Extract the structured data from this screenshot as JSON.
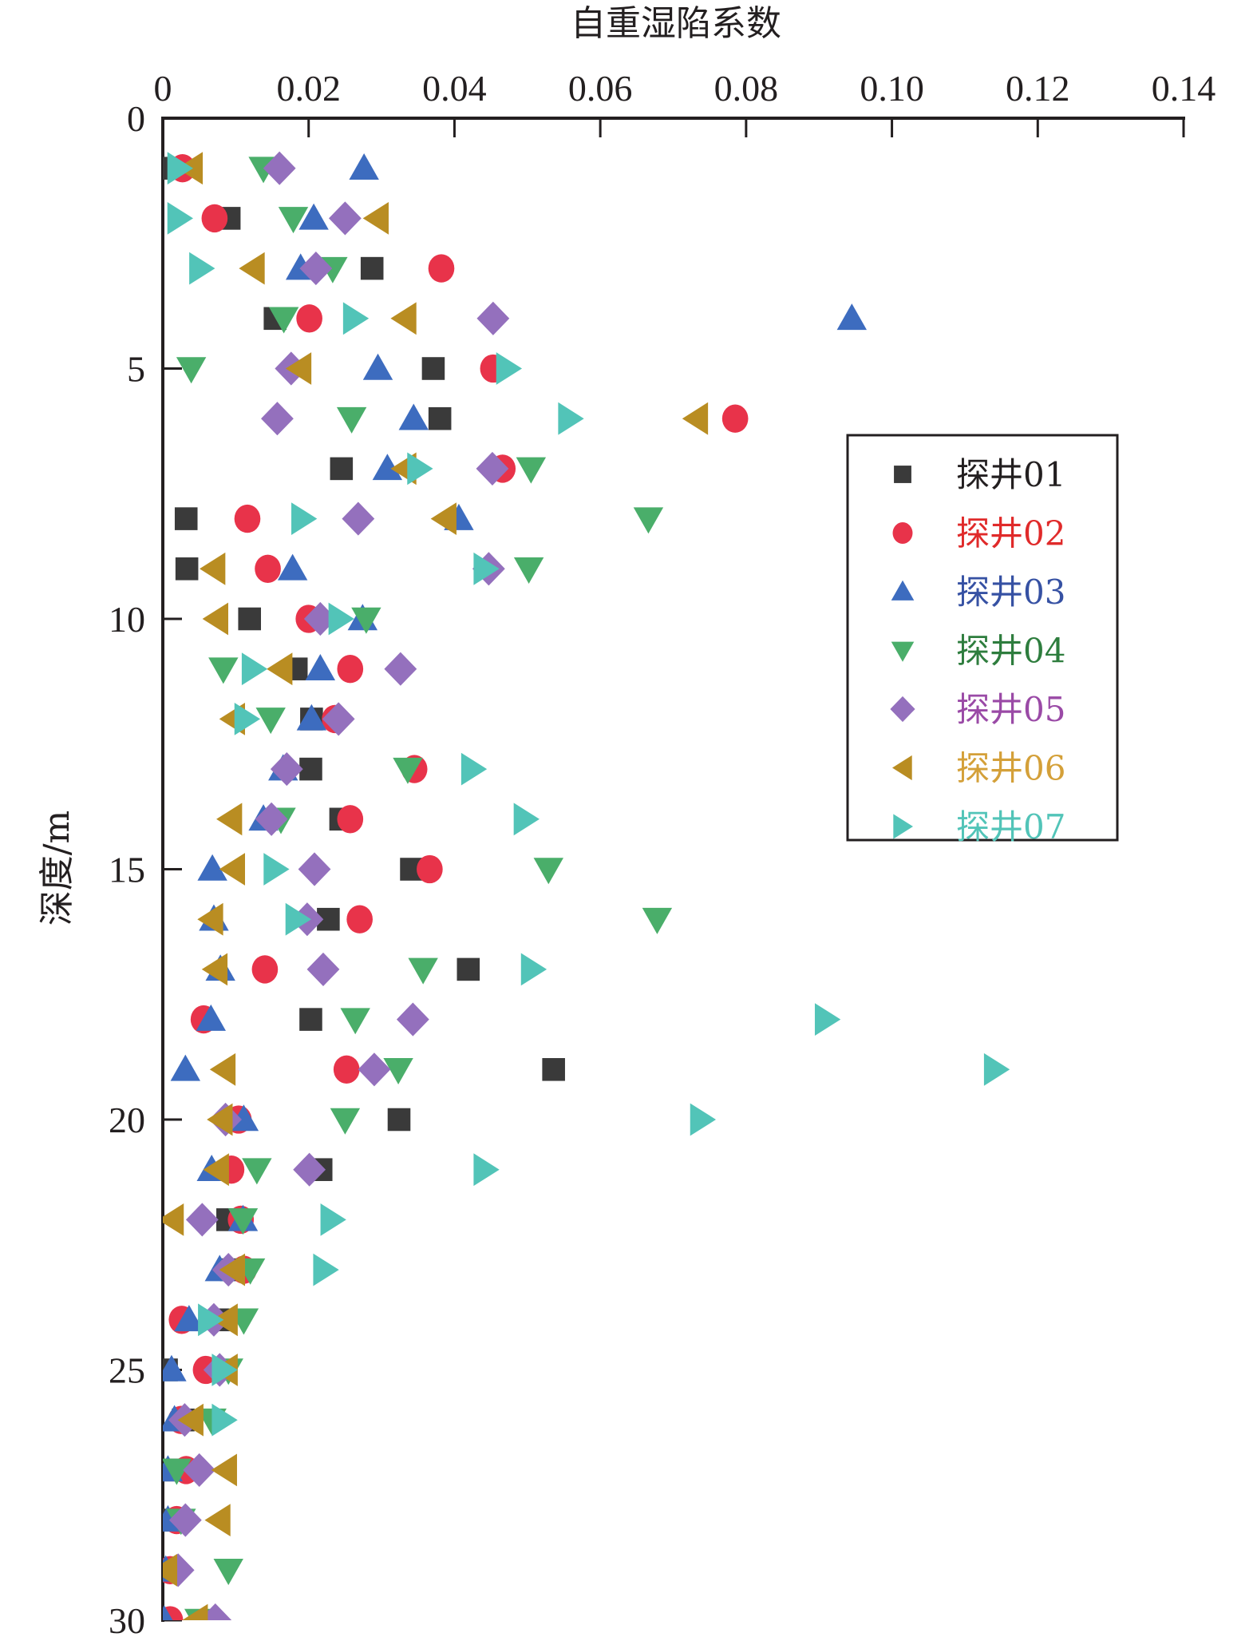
{
  "chart_data": {
    "type": "scatter",
    "title": "",
    "xlabel": "自重湿陷系数",
    "ylabel": "深度/m",
    "xlim": [
      0,
      0.14
    ],
    "ylim": [
      0,
      30
    ],
    "x_axis_position": "top",
    "y_axis_inverted": true,
    "x_ticks": [
      "0",
      "0.02",
      "0.04",
      "0.06",
      "0.08",
      "0.10",
      "0.12",
      "0.14"
    ],
    "x_tick_values": [
      0,
      0.02,
      0.04,
      0.06,
      0.08,
      0.1,
      0.12,
      0.14
    ],
    "y_ticks": [
      "0",
      "5",
      "10",
      "15",
      "20",
      "25",
      "30"
    ],
    "y_tick_values": [
      0,
      5,
      10,
      15,
      20,
      25,
      30
    ],
    "grid": false,
    "legend_position": "right",
    "depths": [
      1,
      2,
      3,
      4,
      5,
      6,
      7,
      8,
      9,
      10,
      11,
      12,
      13,
      14,
      15,
      16,
      17,
      18,
      19,
      20,
      21,
      22,
      23,
      24,
      25,
      26,
      27,
      28,
      29,
      30
    ],
    "series": [
      {
        "name": "探井01",
        "marker": "square",
        "color": "#3a3a3a",
        "label_color": "#231f20",
        "values": [
          0.0005,
          0.0091,
          0.0287,
          0.0154,
          0.0371,
          0.038,
          0.0245,
          0.0032,
          0.0033,
          0.0119,
          0.0183,
          0.0204,
          0.0203,
          0.0244,
          0.0341,
          0.0227,
          0.0419,
          0.0203,
          0.0536,
          0.0324,
          0.0217,
          0.0089,
          0.0094,
          0.0083,
          0.0005,
          0.0028,
          0.0018,
          0.0012,
          0.0012,
          0.0004
        ]
      },
      {
        "name": "探井02",
        "marker": "circle",
        "color": "#e8334a",
        "label_color": "#e02a2a",
        "values": [
          0.0027,
          0.0071,
          0.0382,
          0.0201,
          0.0453,
          0.0785,
          0.0466,
          0.0116,
          0.0144,
          0.02,
          0.0257,
          0.0236,
          0.0345,
          0.0257,
          0.0366,
          0.027,
          0.014,
          0.0056,
          0.0252,
          0.0104,
          0.0094,
          0.0107,
          0.0111,
          0.0026,
          0.0059,
          0.0025,
          0.0032,
          0.0019,
          0.001,
          0.001
        ]
      },
      {
        "name": "探井03",
        "marker": "triangle-up",
        "color": "#3d6cbf",
        "label_color": "#3651a3",
        "values": [
          0.0276,
          0.0207,
          0.0189,
          0.0945,
          0.0295,
          0.0344,
          0.0308,
          0.0406,
          0.0178,
          0.0274,
          0.0216,
          0.0204,
          0.0165,
          0.0138,
          0.0068,
          0.007,
          0.0079,
          0.0066,
          0.0031,
          0.0111,
          0.0067,
          0.011,
          0.0078,
          0.0036,
          0.0012,
          0.0016,
          0.0007,
          0.0007,
          0.0004,
          0.0002
        ]
      },
      {
        "name": "探井04",
        "marker": "triangle-down",
        "color": "#4aae6a",
        "label_color": "#2e7d3e",
        "values": [
          0.0138,
          0.0179,
          0.0233,
          0.0166,
          0.0039,
          0.0259,
          0.0505,
          0.0666,
          0.0502,
          0.0279,
          0.0083,
          0.0148,
          0.0336,
          0.0162,
          0.0529,
          0.0678,
          0.0357,
          0.0264,
          0.0323,
          0.025,
          0.0129,
          0.011,
          0.012,
          0.0111,
          0.009,
          0.0067,
          0.0019,
          0.0025,
          0.009,
          0.005
        ]
      },
      {
        "name": "探井05",
        "marker": "diamond",
        "color": "#9470bd",
        "label_color": "#9a4aa6",
        "values": [
          0.016,
          0.025,
          0.021,
          0.0453,
          0.0176,
          0.0157,
          0.0452,
          0.0268,
          0.0447,
          0.0216,
          0.0326,
          0.0241,
          0.017,
          0.0149,
          0.0208,
          0.0198,
          0.022,
          0.0343,
          0.029,
          0.0086,
          0.0201,
          0.0054,
          0.009,
          0.007,
          0.0078,
          0.003,
          0.005,
          0.0031,
          0.0021,
          0.0072
        ]
      },
      {
        "name": "探井06",
        "marker": "triangle-left",
        "color": "#b98d22",
        "label_color": "#d4a039",
        "values": [
          0.0038,
          0.0293,
          0.0123,
          0.0331,
          0.0187,
          0.0731,
          0.0331,
          0.0386,
          0.0069,
          0.0073,
          0.0161,
          0.0096,
          null,
          0.0092,
          0.0096,
          0.0066,
          0.0072,
          null,
          0.0083,
          0.0079,
          0.0074,
          0.0012,
          0.0096,
          0.0086,
          0.0086,
          0.0039,
          0.0085,
          0.0076,
          0.0003,
          0.0045
        ]
      },
      {
        "name": "探井07",
        "marker": "triangle-right",
        "color": "#52c4b8",
        "label_color": "#52c4b8",
        "values": [
          0.0023,
          0.0023,
          0.0053,
          0.0264,
          0.0474,
          0.0559,
          0.0352,
          0.0193,
          0.0443,
          0.0244,
          0.0125,
          0.0115,
          0.0426,
          0.0498,
          0.0155,
          0.0185,
          0.0508,
          0.0911,
          0.1143,
          0.074,
          0.0443,
          0.0233,
          0.0223,
          0.0065,
          0.0084,
          0.0084,
          null,
          null,
          null,
          null
        ]
      }
    ]
  }
}
